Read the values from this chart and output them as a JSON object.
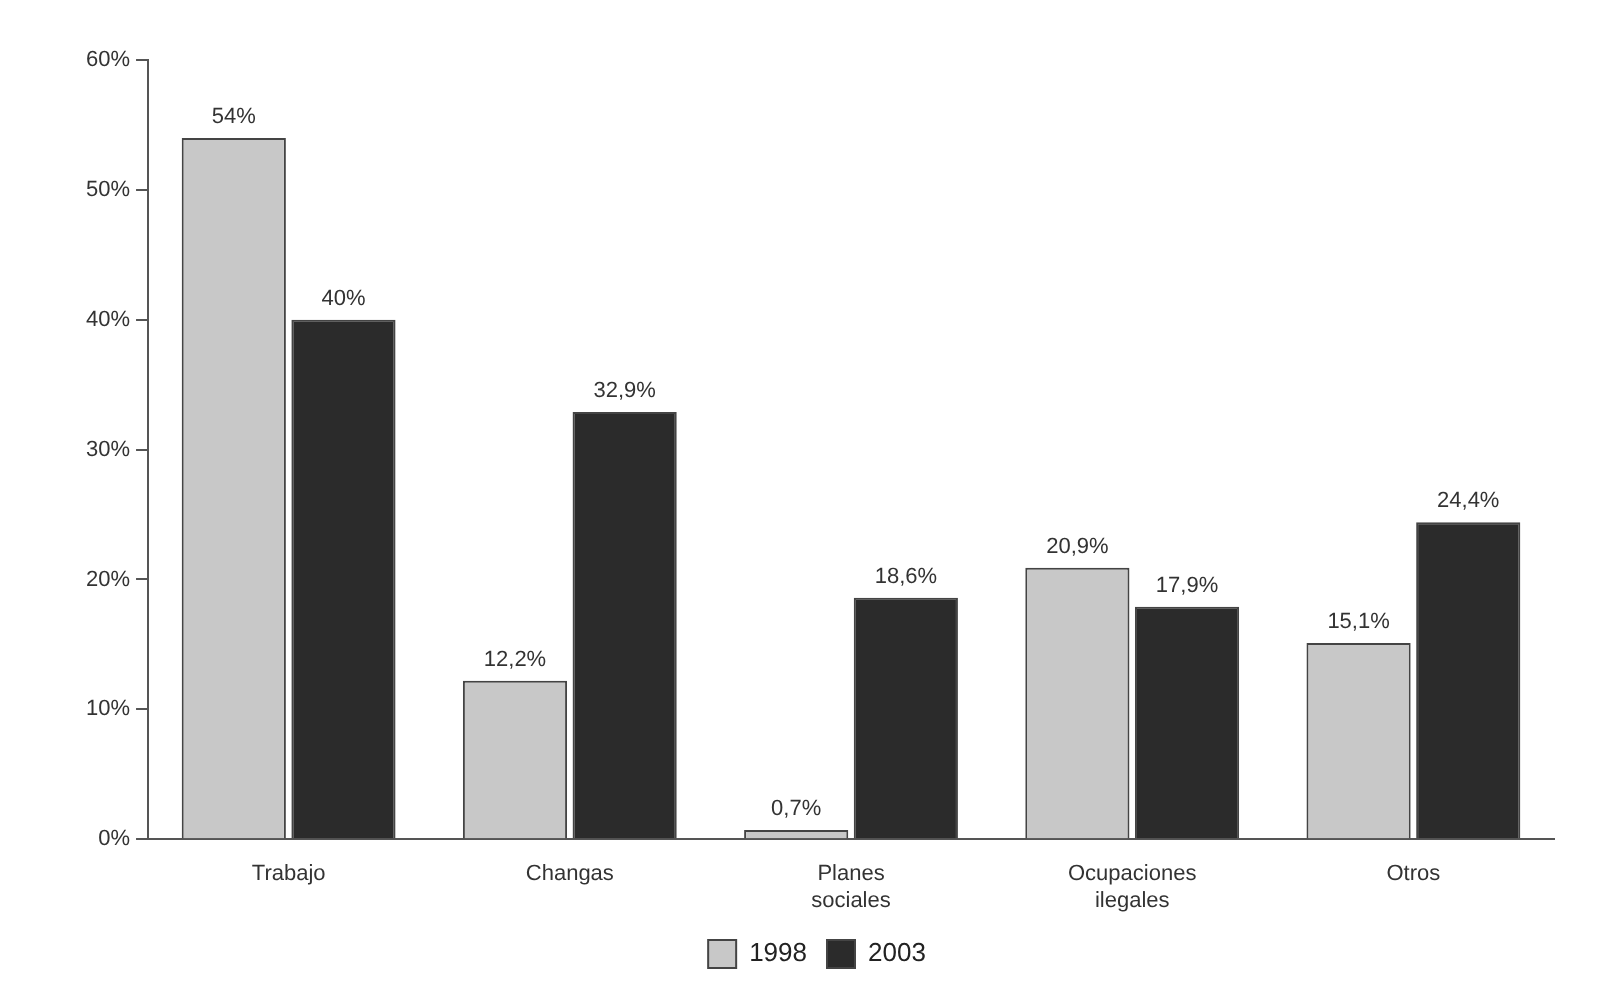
{
  "chart_data": {
    "type": "bar",
    "categories": [
      "Trabajo",
      "Changas",
      "Planes sociales",
      "Ocupaciones ilegales",
      "Otros"
    ],
    "series": [
      {
        "name": "1998",
        "color": "#c8c8c8",
        "values": [
          54,
          12.2,
          0.7,
          20.9,
          15.1
        ],
        "value_labels": [
          "54%",
          "12,2%",
          "0,7%",
          "20,9%",
          "15,1%"
        ]
      },
      {
        "name": "2003",
        "color": "#2b2b2b",
        "values": [
          40,
          32.9,
          18.6,
          17.9,
          24.4
        ],
        "value_labels": [
          "40%",
          "32,9%",
          "18,6%",
          "17,9%",
          "24,4%"
        ]
      }
    ],
    "ylim": [
      0,
      60
    ],
    "yticks": [
      {
        "value": 0,
        "label": "0%"
      },
      {
        "value": 10,
        "label": "10%"
      },
      {
        "value": 20,
        "label": "20%"
      },
      {
        "value": 30,
        "label": "30%"
      },
      {
        "value": 40,
        "label": "40%"
      },
      {
        "value": 50,
        "label": "50%"
      },
      {
        "value": 60,
        "label": "60%"
      }
    ],
    "grid": false,
    "legend": "bottom"
  }
}
